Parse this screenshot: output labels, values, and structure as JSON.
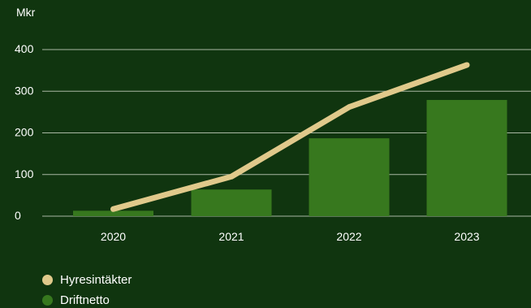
{
  "chart_data": {
    "type": "bar",
    "unit_label": "Mkr",
    "categories": [
      "2020",
      "2021",
      "2022",
      "2023"
    ],
    "ylim": [
      0,
      400
    ],
    "yticks": [
      0,
      100,
      200,
      300,
      400
    ],
    "grid": true,
    "legend_position": "bottom-left",
    "series": [
      {
        "name": "Hyresintäkter",
        "type": "line",
        "color": "#e0c98b",
        "values": [
          17,
          95,
          262,
          363
        ]
      },
      {
        "name": "Driftnetto",
        "type": "bar",
        "color": "#37781e",
        "values": [
          13,
          64,
          187,
          279
        ]
      }
    ]
  },
  "colors": {
    "background": "#10350f",
    "grid": "#a9b7a3",
    "text": "#ffffff"
  }
}
